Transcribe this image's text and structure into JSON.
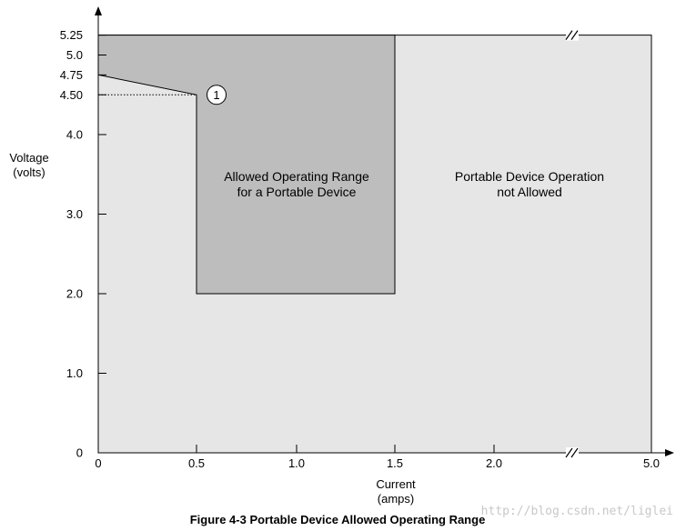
{
  "chart_data": {
    "type": "area",
    "caption": "Figure 4-3  Portable Device Allowed Operating Range",
    "xlabel": [
      "Current",
      "(amps)"
    ],
    "ylabel": [
      "Voltage",
      "(volts)"
    ],
    "x_ticks": [
      {
        "value": 0,
        "label": "0"
      },
      {
        "value": 0.5,
        "label": "0.5"
      },
      {
        "value": 1.0,
        "label": "1.0"
      },
      {
        "value": 1.5,
        "label": "1.5"
      },
      {
        "value": 2.0,
        "label": "2.0"
      },
      {
        "value": 5.0,
        "label": "5.0"
      }
    ],
    "y_ticks": [
      {
        "value": 0,
        "label": "0"
      },
      {
        "value": 1.0,
        "label": "1.0"
      },
      {
        "value": 2.0,
        "label": "2.0"
      },
      {
        "value": 3.0,
        "label": "3.0"
      },
      {
        "value": 4.0,
        "label": "4.0"
      },
      {
        "value": 4.5,
        "label": "4.50"
      },
      {
        "value": 4.75,
        "label": "4.75"
      },
      {
        "value": 5.0,
        "label": "5.0"
      },
      {
        "value": 5.25,
        "label": "5.25"
      }
    ],
    "x_axis_break": true,
    "regions": [
      {
        "name": "not-allowed",
        "label": [
          "Portable Device Operation",
          "not Allowed"
        ],
        "color": "#e6e6e6",
        "points": [
          [
            0,
            0
          ],
          [
            5.0,
            0
          ],
          [
            5.0,
            5.25
          ],
          [
            0,
            5.25
          ]
        ]
      },
      {
        "name": "allowed",
        "label": [
          "Allowed Operating Range",
          "for a Portable Device"
        ],
        "color": "#bdbdbd",
        "points": [
          [
            0,
            4.75
          ],
          [
            0,
            5.25
          ],
          [
            1.5,
            5.25
          ],
          [
            1.5,
            2.0
          ],
          [
            0.5,
            2.0
          ],
          [
            0.5,
            4.5
          ]
        ]
      }
    ],
    "annotations": [
      {
        "label": "1",
        "x": 0.5,
        "y": 4.5
      }
    ],
    "reference_lines": [
      {
        "from": [
          0,
          4.5
        ],
        "to": [
          0.5,
          4.5
        ],
        "style": "dotted"
      }
    ]
  },
  "watermark": "http://blog.csdn.net/liglei"
}
